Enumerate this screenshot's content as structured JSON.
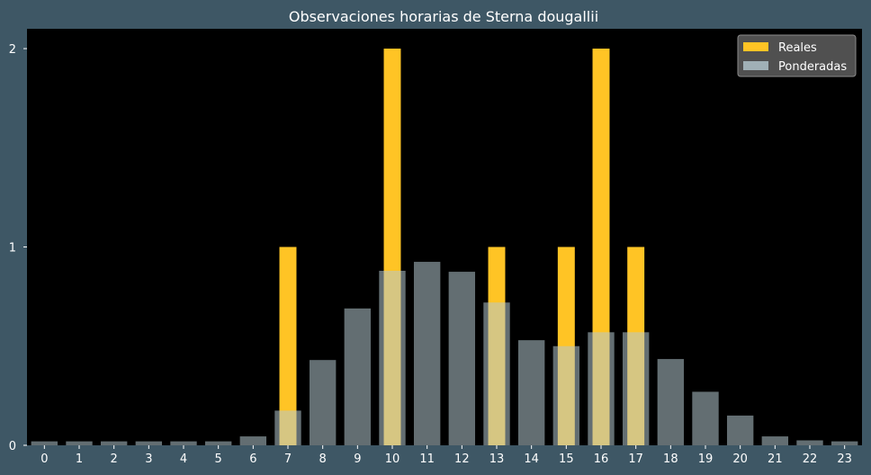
{
  "chart_data": {
    "type": "bar",
    "title": "Observaciones horarias de Sterna dougallii",
    "xlabel": "",
    "ylabel": "",
    "categories": [
      "0",
      "1",
      "2",
      "3",
      "4",
      "5",
      "6",
      "7",
      "8",
      "9",
      "10",
      "11",
      "12",
      "13",
      "14",
      "15",
      "16",
      "17",
      "18",
      "19",
      "20",
      "21",
      "22",
      "23"
    ],
    "ylim": [
      0,
      2.1
    ],
    "yticks": [
      "0",
      "1",
      "2"
    ],
    "legend_position": "top-right",
    "grid": false,
    "series": [
      {
        "name": "Reales",
        "color": "#ffc425",
        "values": [
          0,
          0,
          0,
          0,
          0,
          0,
          0,
          1,
          0,
          0,
          2,
          0,
          0,
          1,
          0,
          1,
          2,
          1,
          0,
          0,
          0,
          0,
          0,
          0
        ]
      },
      {
        "name": "Ponderadas",
        "color": "#b4c8d0",
        "opacity": 0.55,
        "values": [
          0.02,
          0.02,
          0.02,
          0.02,
          0.02,
          0.02,
          0.045,
          0.175,
          0.43,
          0.69,
          0.88,
          0.925,
          0.875,
          0.72,
          0.53,
          0.5,
          0.57,
          0.57,
          0.435,
          0.27,
          0.15,
          0.045,
          0.025,
          0.02
        ]
      }
    ],
    "colors": {
      "background": "#3e5765",
      "plot_area": "#000000",
      "text": "#ffffff",
      "legend_background": "#595959"
    }
  }
}
